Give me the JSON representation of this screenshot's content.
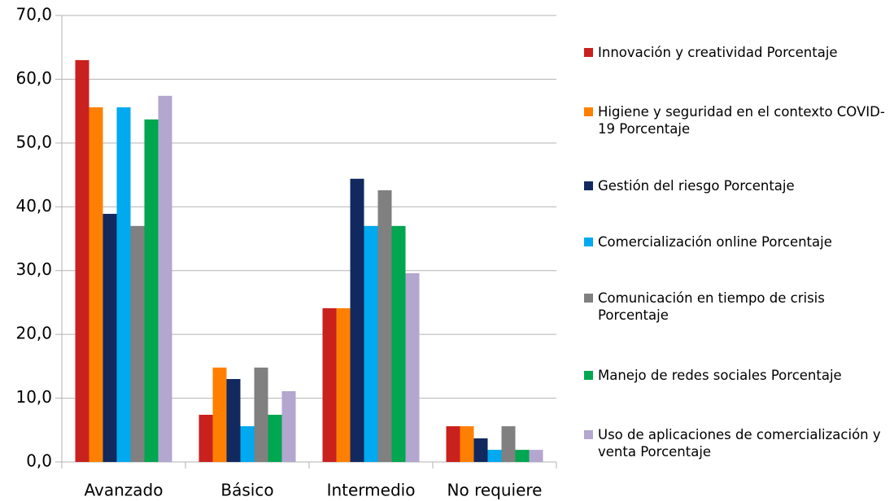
{
  "chart_data": {
    "type": "bar",
    "categories": [
      "Avanzado",
      "Básico",
      "Intermedio",
      "No requiere"
    ],
    "series": [
      {
        "name": "Innovación y creatividad Porcentaje",
        "color": "#c9211e",
        "values": [
          63.0,
          7.4,
          24.1,
          5.6
        ]
      },
      {
        "name": "Higiene y seguridad en el contexto COVID-19 Porcentaje",
        "color": "#ff8000",
        "values": [
          55.6,
          14.8,
          24.1,
          5.6
        ]
      },
      {
        "name": "Gestión del riesgo Porcentaje",
        "color": "#11295e",
        "values": [
          38.9,
          13.0,
          44.4,
          3.7
        ]
      },
      {
        "name": "Comercialización online Porcentaje",
        "color": "#00a9f0",
        "values": [
          55.6,
          5.6,
          37.0,
          1.9
        ]
      },
      {
        "name": "Comunicación en tiempo de crisis Porcentaje",
        "color": "#808080",
        "values": [
          37.0,
          14.8,
          42.6,
          5.6
        ]
      },
      {
        "name": "Manejo de redes sociales Porcentaje",
        "color": "#00a650",
        "values": [
          53.7,
          7.4,
          37.0,
          1.9
        ]
      },
      {
        "name": "Uso de aplicaciones de comercialización y venta Porcentaje",
        "color": "#b3a6cf",
        "values": [
          57.4,
          11.1,
          29.6,
          1.9
        ]
      }
    ],
    "ylim": [
      0,
      70
    ],
    "yticks": [
      {
        "value": 0,
        "label": "0,0"
      },
      {
        "value": 10,
        "label": "10,0"
      },
      {
        "value": 20,
        "label": "20,0"
      },
      {
        "value": 30,
        "label": "30,0"
      },
      {
        "value": 40,
        "label": "40,0"
      },
      {
        "value": 50,
        "label": "50,0"
      },
      {
        "value": 60,
        "label": "60,0"
      },
      {
        "value": 70,
        "label": "70,0"
      }
    ],
    "grid": true,
    "legend": "right"
  }
}
